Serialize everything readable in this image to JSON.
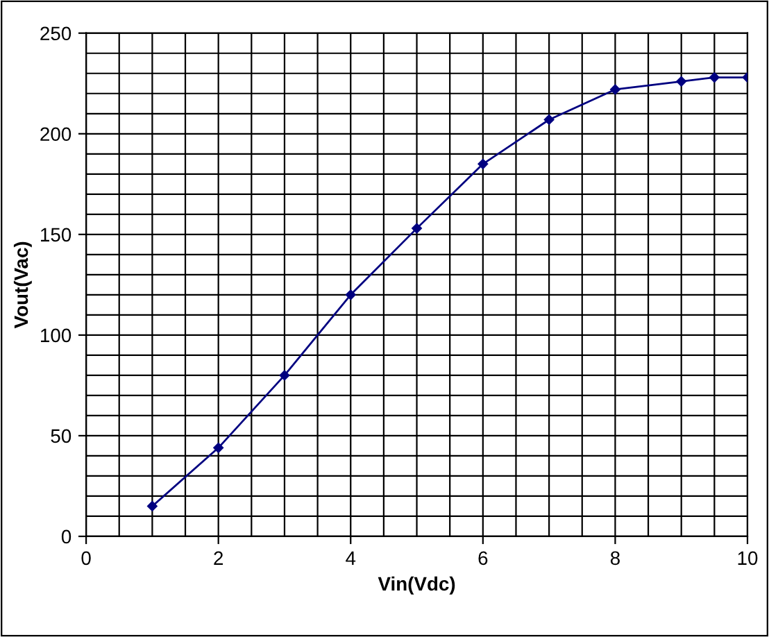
{
  "chart_data": {
    "type": "line",
    "xlabel": "Vin(Vdc)",
    "ylabel": "Vout(Vac)",
    "x": [
      1,
      2,
      3,
      4,
      5,
      6,
      7,
      8,
      9,
      9.5,
      10
    ],
    "series": [
      {
        "color": "#000080",
        "values": [
          15,
          44,
          80,
          120,
          153,
          185,
          207,
          222,
          226,
          228,
          228
        ]
      }
    ],
    "xlim": [
      0,
      10
    ],
    "xticks": [
      0,
      2,
      4,
      6,
      8,
      10
    ],
    "ylim": [
      0,
      250
    ],
    "yticks": [
      0,
      50,
      100,
      150,
      200,
      250
    ],
    "grid": true,
    "marker": "diamond",
    "line_style": "solid"
  }
}
